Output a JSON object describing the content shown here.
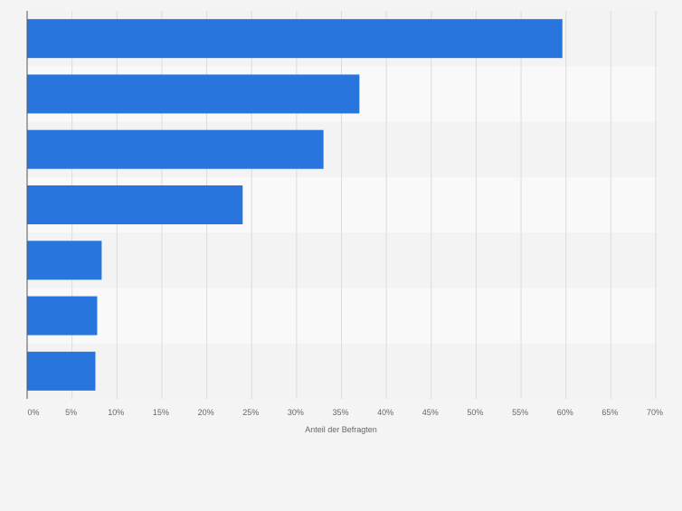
{
  "chart_data": {
    "type": "bar",
    "orientation": "horizontal",
    "categories": [
      "",
      "",
      "",
      "",
      "",
      "",
      ""
    ],
    "values": [
      59.6,
      37.0,
      33.0,
      24.0,
      8.3,
      7.8,
      7.6
    ],
    "xlabel": "Anteil der Befragten",
    "ylabel": "",
    "xlim": [
      0,
      70
    ],
    "ticks": [
      0,
      5,
      10,
      15,
      20,
      25,
      30,
      35,
      40,
      45,
      50,
      55,
      60,
      65,
      70
    ],
    "tick_suffix": "%",
    "grid": true,
    "legend": "none",
    "bar_color": "#2775dd"
  }
}
